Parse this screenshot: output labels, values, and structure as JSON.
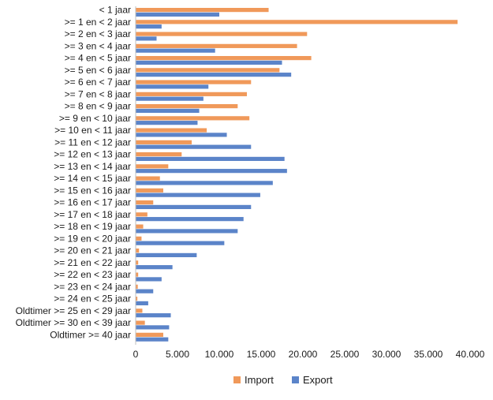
{
  "chart_data": {
    "type": "bar",
    "orientation": "horizontal",
    "title": "",
    "xlabel": "",
    "ylabel": "",
    "xlim": [
      0,
      40000
    ],
    "x_ticks": [
      "0",
      "5.000",
      "10.000",
      "15.000",
      "20.000",
      "25.000",
      "30.000",
      "35.000",
      "40.000"
    ],
    "grid": false,
    "legend_position": "bottom",
    "categories": [
      "< 1 jaar",
      ">= 1 en < 2 jaar",
      ">= 2 en < 3 jaar",
      ">= 3 en < 4 jaar",
      ">= 4 en < 5 jaar",
      ">= 5 en < 6 jaar",
      ">= 6 en < 7 jaar",
      ">= 7 en < 8 jaar",
      ">= 8 en < 9 jaar",
      ">= 9 en < 10 jaar",
      ">= 10 en < 11 jaar",
      ">= 11 en < 12 jaar",
      ">= 12 en < 13 jaar",
      ">= 13 en < 14 jaar",
      ">= 14 en < 15 jaar",
      ">= 15 en < 16 jaar",
      ">= 16 en < 17 jaar",
      ">= 17 en < 18 jaar",
      ">= 18 en < 19 jaar",
      ">= 19 en < 20 jaar",
      ">= 20 en < 21 jaar",
      ">= 21 en < 22 jaar",
      ">= 22 en < 23 jaar",
      ">= 23 en < 24 jaar",
      ">= 24 en < 25 jaar",
      "Oldtimer >=  25 en < 29 jaar",
      "Oldtimer >= 30 en < 39 jaar",
      "Oldtimer >= 40 jaar"
    ],
    "series": [
      {
        "name": "Import",
        "color": "#f0995a",
        "values": [
          15900,
          38500,
          20500,
          19300,
          21000,
          17200,
          13800,
          13300,
          12200,
          13600,
          8500,
          6700,
          5500,
          3900,
          2900,
          3300,
          2100,
          1400,
          900,
          700,
          400,
          300,
          300,
          250,
          200,
          800,
          1100,
          3300
        ]
      },
      {
        "name": "Export",
        "color": "#5b84c9",
        "values": [
          10000,
          3100,
          2500,
          9500,
          17500,
          18600,
          8700,
          8100,
          7600,
          7400,
          10900,
          13800,
          17800,
          18100,
          16400,
          14900,
          13800,
          12900,
          12200,
          10600,
          7300,
          4400,
          3100,
          2100,
          1500,
          4200,
          4000,
          3900
        ]
      }
    ]
  }
}
